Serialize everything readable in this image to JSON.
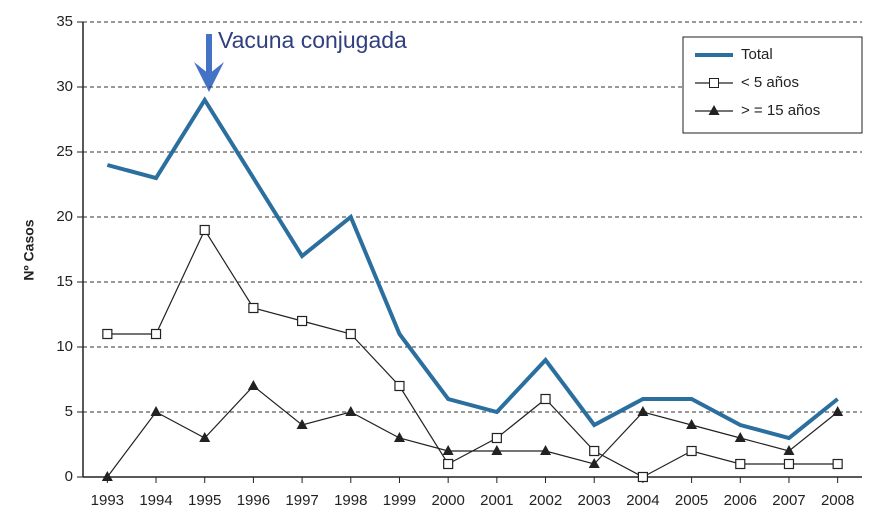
{
  "chart_data": {
    "type": "line",
    "ylabel": "Nº Casos",
    "annotation": "Vacuna conjugada",
    "categories": [
      "1993",
      "1994",
      "1995",
      "1996",
      "1997",
      "1998",
      "1999",
      "2000",
      "2001",
      "2002",
      "2003",
      "2004",
      "2005",
      "2006",
      "2007",
      "2008"
    ],
    "series": [
      {
        "name": "Total",
        "color": "#2b6f9e",
        "marker": "none",
        "values": [
          24,
          23,
          29,
          23,
          17,
          20,
          11,
          6,
          5,
          9,
          4,
          6,
          6,
          4,
          3,
          6
        ]
      },
      {
        "name": "< 5 años",
        "color": "#222222",
        "marker": "square",
        "values": [
          11,
          11,
          19,
          13,
          12,
          11,
          7,
          1,
          3,
          6,
          2,
          0,
          2,
          1,
          1,
          1
        ]
      },
      {
        "name": "> = 15 años",
        "color": "#222222",
        "marker": "triangle",
        "values": [
          0,
          5,
          3,
          7,
          4,
          5,
          3,
          2,
          2,
          2,
          1,
          5,
          4,
          3,
          2,
          5
        ]
      }
    ],
    "ylim": [
      0,
      35
    ],
    "yticks": [
      0,
      5,
      10,
      15,
      20,
      25,
      30,
      35
    ],
    "grid": true,
    "legend": "upper right"
  }
}
